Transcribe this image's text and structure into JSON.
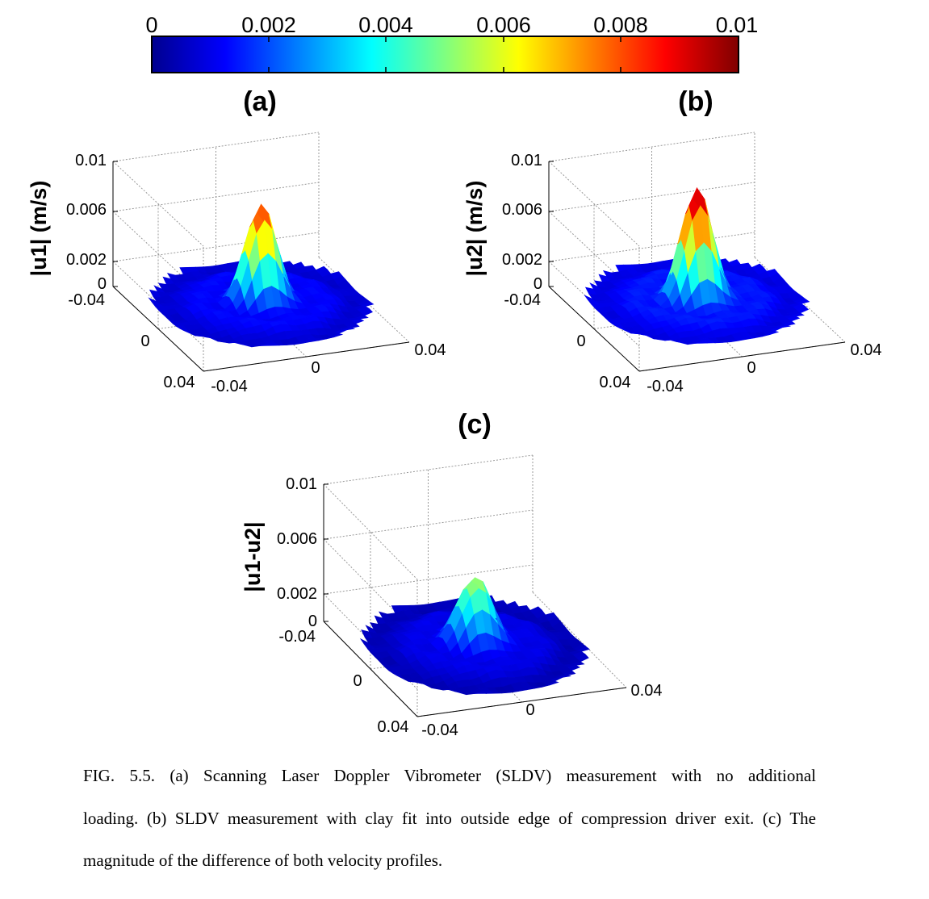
{
  "colorbar": {
    "min": 0,
    "max": 0.01,
    "tick_labels": [
      "0",
      "0.002",
      "0.004",
      "0.006",
      "0.008",
      "0.01"
    ],
    "colormap": [
      "#00008f",
      "#0000ff",
      "#00ffff",
      "#ffff00",
      "#ff0000",
      "#800000"
    ]
  },
  "chart_data": [
    {
      "type": "surface3d",
      "panel_label": "(a)",
      "zlabel": "|u1| (m/s)",
      "x_ticks": [
        "-0.04",
        "0",
        "0.04"
      ],
      "y_ticks": [
        "-0.04",
        "0",
        "0.04"
      ],
      "z_ticks": [
        "0",
        "0.002",
        "0.006",
        "0.01"
      ],
      "xlim": [
        -0.04,
        0.04
      ],
      "ylim": [
        -0.04,
        0.04
      ],
      "zlim": [
        0,
        0.01
      ],
      "peak_value": 0.0085,
      "background_level": 0.001,
      "grid": true
    },
    {
      "type": "surface3d",
      "panel_label": "(b)",
      "zlabel": "|u2| (m/s)",
      "x_ticks": [
        "-0.04",
        "0",
        "0.04"
      ],
      "y_ticks": [
        "-0.04",
        "0",
        "0.04"
      ],
      "z_ticks": [
        "0",
        "0.002",
        "0.006",
        "0.01"
      ],
      "xlim": [
        -0.04,
        0.04
      ],
      "ylim": [
        -0.04,
        0.04
      ],
      "zlim": [
        0,
        0.01
      ],
      "peak_value": 0.0098,
      "background_level": 0.0012,
      "grid": true
    },
    {
      "type": "surface3d",
      "panel_label": "(c)",
      "zlabel": "|u1-u2|",
      "x_ticks": [
        "-0.04",
        "0",
        "0.04"
      ],
      "y_ticks": [
        "-0.04",
        "0",
        "0.04"
      ],
      "z_ticks": [
        "0",
        "0.002",
        "0.006",
        "0.01"
      ],
      "xlim": [
        -0.04,
        0.04
      ],
      "ylim": [
        -0.04,
        0.04
      ],
      "zlim": [
        0,
        0.01
      ],
      "peak_value": 0.0053,
      "background_level": 0.0007,
      "grid": true
    }
  ],
  "caption": {
    "line1": "FIG. 5.5. (a) Scanning Laser Doppler Vibrometer (SLDV) measurement with no additional",
    "line2": "loading. (b) SLDV measurement with clay fit into outside edge of compression driver exit. (c) The",
    "line3": "magnitude of the difference of both velocity profiles."
  }
}
